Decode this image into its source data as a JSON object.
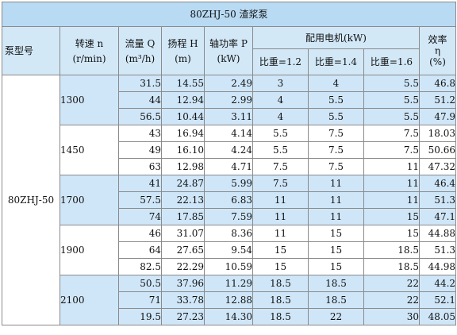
{
  "table": {
    "title": "80ZHJ-50 渣浆泵",
    "headers": {
      "model": "泵型号",
      "speed_line1": "转速 n",
      "speed_line2": "(r/min)",
      "flow_line1": "流量 Q",
      "flow_line2": "(m³/h)",
      "head_line1": "扬程 H",
      "head_line2": "(m)",
      "power_line1": "轴功率 P",
      "power_line2": "(kW)",
      "motor": "配用电机(kW)",
      "sg1": "比重=1.2",
      "sg2": "比重=1.4",
      "sg3": "比重=1.6",
      "eff_line1": "效率",
      "eff_line2": "η",
      "eff_line3": "(%)"
    },
    "model": "80ZHJ-50",
    "groups": [
      {
        "speed": "1300",
        "rows": [
          [
            "31.5",
            "14.55",
            "2.49",
            "3",
            "4",
            "5.5",
            "46.8"
          ],
          [
            "44",
            "12.94",
            "2.99",
            "4",
            "5.5",
            "5.5",
            "51.2"
          ],
          [
            "56.5",
            "10.44",
            "3.11",
            "4",
            "5.5",
            "5.5",
            "47.9"
          ]
        ]
      },
      {
        "speed": "1450",
        "rows": [
          [
            "43",
            "16.94",
            "4.14",
            "5.5",
            "7.5",
            "7.5",
            "18.03"
          ],
          [
            "49",
            "16.10",
            "4.24",
            "5.5",
            "7.5",
            "7.5",
            "50.66"
          ],
          [
            "63",
            "12.98",
            "4.71",
            "7.5",
            "7.5",
            "11",
            "47.32"
          ]
        ]
      },
      {
        "speed": "1700",
        "rows": [
          [
            "41",
            "24.87",
            "5.99",
            "7.5",
            "11",
            "11",
            "46.4"
          ],
          [
            "57.5",
            "22.13",
            "6.83",
            "11",
            "11",
            "11",
            "51.3"
          ],
          [
            "74",
            "17.85",
            "7.59",
            "11",
            "11",
            "15",
            "47.1"
          ]
        ]
      },
      {
        "speed": "1900",
        "rows": [
          [
            "46",
            "31.07",
            "8.36",
            "11",
            "15",
            "15",
            "44.88"
          ],
          [
            "64",
            "27.65",
            "9.54",
            "15",
            "15",
            "18.5",
            "51.3"
          ],
          [
            "82.5",
            "22.29",
            "10.59",
            "15",
            "15",
            "18.5",
            "44.98"
          ]
        ]
      },
      {
        "speed": "2100",
        "rows": [
          [
            "50.5",
            "37.96",
            "11.29",
            "18.5",
            "18.5",
            "22",
            "44.2"
          ],
          [
            "71",
            "33.78",
            "12.88",
            "18.5",
            "18.5",
            "22",
            "52.1"
          ],
          [
            "19.5",
            "27.23",
            "14.30",
            "18.5",
            "22",
            "30",
            "48.05"
          ]
        ]
      }
    ]
  }
}
